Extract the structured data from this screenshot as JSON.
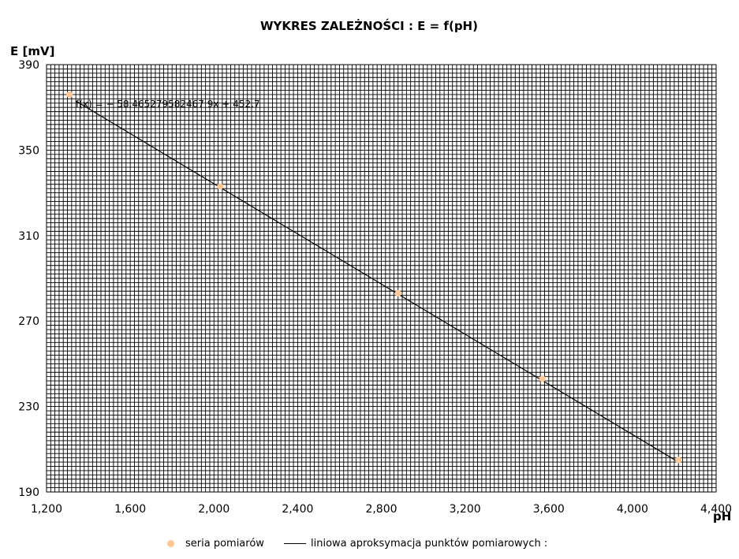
{
  "chart_data": {
    "type": "scatter",
    "title": "WYKRES ZALEŻNOŚCI :  E = f(pH)",
    "xlabel": "pH",
    "ylabel": "E [mV]",
    "xlim": [
      1200,
      4400
    ],
    "ylim": [
      190,
      390
    ],
    "xticks": [
      "1,200",
      "1,600",
      "2,000",
      "2,400",
      "2,800",
      "3,200",
      "3,600",
      "4,000",
      "4,400"
    ],
    "yticks": [
      "190",
      "230",
      "270",
      "310",
      "350",
      "390"
    ],
    "grid": true,
    "series": [
      {
        "name": "seria pomiarów",
        "kind": "points",
        "color": "#ffc895",
        "x": [
          1310,
          2030,
          2880,
          3570,
          4220
        ],
        "y": [
          376,
          333,
          283,
          243,
          205
        ]
      },
      {
        "name": "liniowa aproksymacja punktów pomiarowych :",
        "kind": "line",
        "color": "#000000",
        "x": [
          1340,
          4220
        ],
        "y": [
          373,
          204
        ]
      }
    ],
    "annotation": "f(x) = − 58.465279582467 9x + 452.7",
    "legend": "bottom"
  }
}
